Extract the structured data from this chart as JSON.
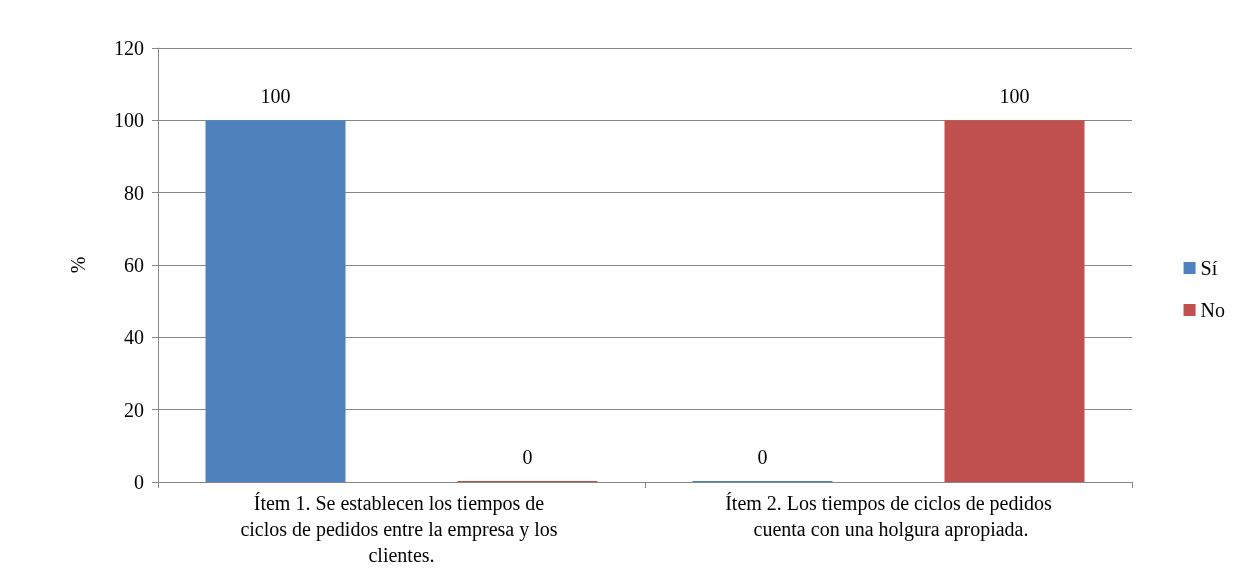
{
  "chart_data": {
    "type": "bar",
    "ylabel": "%",
    "categories": [
      "Ítem 1. Se establecen los tiempos de ciclos de pedidos entre la empresa y los clientes.",
      "Ítem 2. Los tiempos de ciclos de pedidos cuenta con una holgura apropiada."
    ],
    "series": [
      {
        "name": "Sí",
        "color": "#4f81bd",
        "values": [
          100,
          0
        ]
      },
      {
        "name": "No",
        "color": "#c0504d",
        "values": [
          0,
          100
        ]
      }
    ],
    "ylim": [
      0,
      120
    ],
    "yticks": [
      0,
      20,
      40,
      60,
      80,
      100,
      120
    ],
    "grid": "y",
    "legend": "right",
    "data_labels": true
  }
}
